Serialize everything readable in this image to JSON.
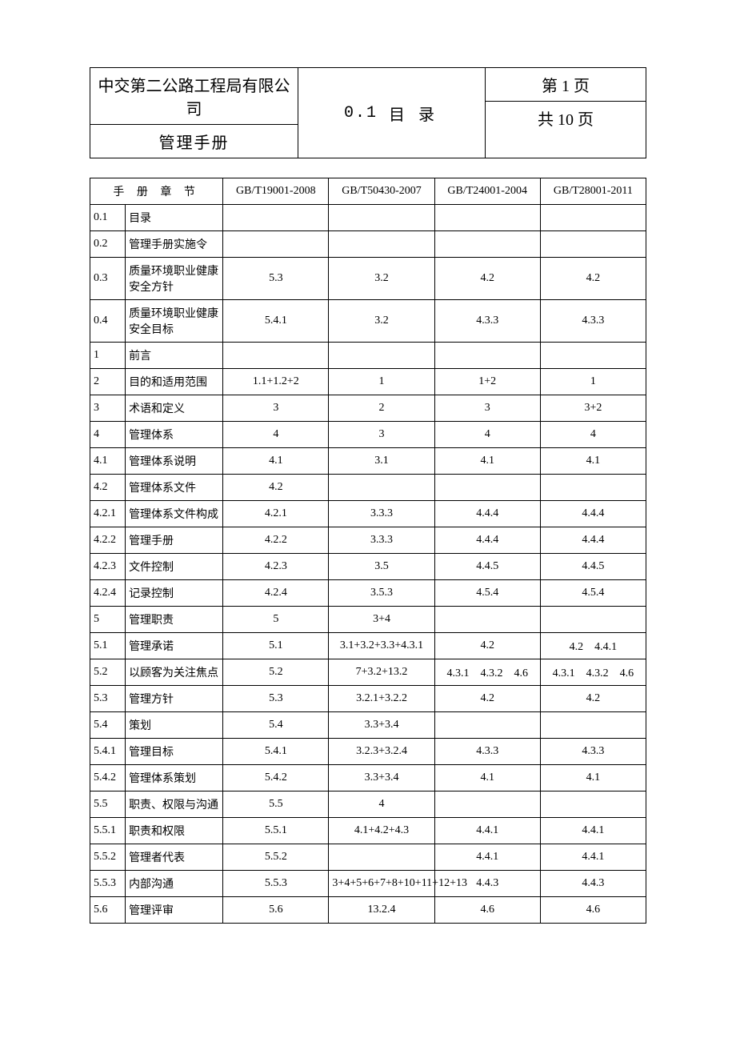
{
  "colors": {
    "text": "#000000",
    "border": "#000000",
    "background": "#ffffff"
  },
  "fonts": {
    "body_family": "SimSun",
    "body_size_pt": 11,
    "header_size_pt": 15
  },
  "header": {
    "company": "中交第二公路工程局有限公司",
    "manual": "管理手册",
    "section_code": "0.1",
    "section_title": "目 录",
    "page_current": "第 1 页",
    "page_total": "共 10 页"
  },
  "table": {
    "type": "table",
    "columns": [
      {
        "label_a": "",
        "label_b": "手 册 章 节",
        "is_header_span": true
      },
      {
        "label": "GB/T19001-2008"
      },
      {
        "label": "GB/T50430-2007"
      },
      {
        "label": "GB/T24001-2004"
      },
      {
        "label": "GB/T28001-2011"
      }
    ],
    "rows": [
      {
        "num": "0.1",
        "chap": "目录",
        "c1": "",
        "c2": "",
        "c3": "",
        "c4": ""
      },
      {
        "num": "0.2",
        "chap": "管理手册实施令",
        "c1": "",
        "c2": "",
        "c3": "",
        "c4": ""
      },
      {
        "num": "0.3",
        "chap": "质量环境职业健康安全方针",
        "c1": "5.3",
        "c2": "3.2",
        "c3": "4.2",
        "c4": "4.2"
      },
      {
        "num": "0.4",
        "chap": "质量环境职业健康安全目标",
        "c1": "5.4.1",
        "c2": "3.2",
        "c3": "4.3.3",
        "c4": "4.3.3"
      },
      {
        "num": "1",
        "chap": "前言",
        "c1": "",
        "c2": "",
        "c3": "",
        "c4": ""
      },
      {
        "num": "2",
        "chap": "目的和适用范围",
        "c1": "1.1+1.2+2",
        "c2": "1",
        "c3": "1+2",
        "c4": "1"
      },
      {
        "num": "3",
        "chap": "术语和定义",
        "c1": "3",
        "c2": "2",
        "c3": "3",
        "c4": "3+2"
      },
      {
        "num": "4",
        "chap": "管理体系",
        "c1": "4",
        "c2": "3",
        "c3": "4",
        "c4": "4"
      },
      {
        "num": "4.1",
        "chap": "管理体系说明",
        "c1": "4.1",
        "c2": "3.1",
        "c3": "4.1",
        "c4": "4.1"
      },
      {
        "num": "4.2",
        "chap": "管理体系文件",
        "c1": "4.2",
        "c2": "",
        "c3": "",
        "c4": ""
      },
      {
        "num": "4.2.1",
        "chap": "管理体系文件构成",
        "c1": "4.2.1",
        "c2": "3.3.3",
        "c3": "4.4.4",
        "c4": "4.4.4"
      },
      {
        "num": "4.2.2",
        "chap": "管理手册",
        "c1": "4.2.2",
        "c2": "3.3.3",
        "c3": "4.4.4",
        "c4": "4.4.4"
      },
      {
        "num": "4.2.3",
        "chap": "文件控制",
        "c1": "4.2.3",
        "c2": "3.5",
        "c3": "4.4.5",
        "c4": "4.4.5"
      },
      {
        "num": "4.2.4",
        "chap": "记录控制",
        "c1": "4.2.4",
        "c2": "3.5.3",
        "c3": "4.5.4",
        "c4": "4.5.4"
      },
      {
        "num": "5",
        "chap": "管理职责",
        "c1": "5",
        "c2": "3+4",
        "c3": "",
        "c4": ""
      },
      {
        "num": "5.1",
        "chap": "管理承诺",
        "c1": "5.1",
        "c2": "3.1+3.2+3.3+4.3.1",
        "c3": "4.2",
        "c4": "4.2　4.4.1"
      },
      {
        "num": "5.2",
        "chap": "以顾客为关注焦点",
        "c1": "5.2",
        "c2": "7+3.2+13.2",
        "c3": "4.3.1　4.3.2　4.6",
        "c4": "4.3.1　4.3.2　4.6"
      },
      {
        "num": "5.3",
        "chap": "管理方针",
        "c1": "5.3",
        "c2": "3.2.1+3.2.2",
        "c3": "4.2",
        "c4": "4.2"
      },
      {
        "num": "5.4",
        "chap": "策划",
        "c1": "5.4",
        "c2": "3.3+3.4",
        "c3": "",
        "c4": ""
      },
      {
        "num": "5.4.1",
        "chap": "管理目标",
        "c1": "5.4.1",
        "c2": "3.2.3+3.2.4",
        "c3": "4.3.3",
        "c4": "4.3.3"
      },
      {
        "num": "5.4.2",
        "chap": "管理体系策划",
        "c1": "5.4.2",
        "c2": "3.3+3.4",
        "c3": "4.1",
        "c4": "4.1"
      },
      {
        "num": "5.5",
        "chap": "职责、权限与沟通",
        "c1": "5.5",
        "c2": "4",
        "c3": "",
        "c4": ""
      },
      {
        "num": "5.5.1",
        "chap": "职责和权限",
        "c1": "5.5.1",
        "c2": "4.1+4.2+4.3",
        "c3": "4.4.1",
        "c4": "4.4.1"
      },
      {
        "num": "5.5.2",
        "chap": "管理者代表",
        "c1": "5.5.2",
        "c2": "",
        "c3": "4.4.1",
        "c4": "4.4.1"
      },
      {
        "num": "5.5.3",
        "chap": "内部沟通",
        "c1": "5.5.3",
        "c2": "3+4+5+6+7+8+10+11+12+13",
        "c3": "4.4.3",
        "c4": "4.4.3",
        "c2_small": true
      },
      {
        "num": "5.6",
        "chap": "管理评审",
        "c1": "5.6",
        "c2": "13.2.4",
        "c3": "4.6",
        "c4": "4.6"
      }
    ]
  }
}
